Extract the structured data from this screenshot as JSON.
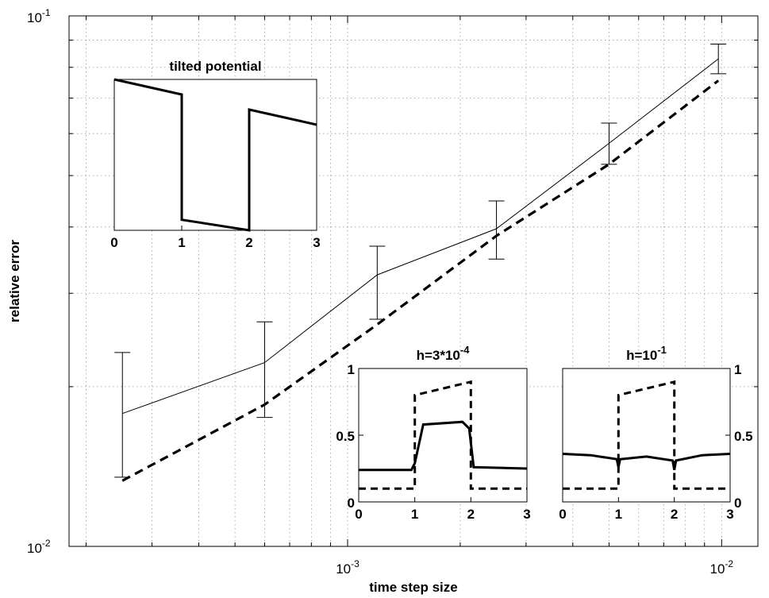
{
  "chart_data": [
    {
      "id": "main",
      "type": "line",
      "xlabel": "time step size",
      "ylabel": "relative error",
      "xscale": "log",
      "yscale": "log",
      "xlim": [
        0.00018,
        0.0125
      ],
      "ylim": [
        0.01,
        0.1
      ],
      "x_tick_labels": [
        {
          "value": 0.001,
          "base": "10",
          "exp": "-3"
        },
        {
          "value": 0.01,
          "base": "10",
          "exp": "-2"
        }
      ],
      "y_tick_labels": [
        {
          "value": 0.01,
          "base": "10",
          "exp": "-2"
        },
        {
          "value": 0.1,
          "base": "10",
          "exp": "-1"
        }
      ],
      "grid": true,
      "series": [
        {
          "style": "solid-thin",
          "x": [
            0.00025,
            0.0006,
            0.0012,
            0.0025,
            0.005,
            0.0098
          ],
          "y": [
            0.0178,
            0.0222,
            0.0325,
            0.0397,
            0.0575,
            0.083
          ],
          "err_low": [
            0.0135,
            0.0175,
            0.0268,
            0.0348,
            0.0525,
            0.0778
          ],
          "err_high": [
            0.0232,
            0.0265,
            0.0368,
            0.0448,
            0.0628,
            0.0885
          ]
        },
        {
          "style": "dashed-thick",
          "x": [
            0.00025,
            0.0006,
            0.0012,
            0.0025,
            0.005,
            0.0098
          ],
          "y": [
            0.0133,
            0.0185,
            0.0262,
            0.0385,
            0.0525,
            0.0755
          ]
        }
      ]
    },
    {
      "id": "inset-potential",
      "type": "line",
      "title": "tilted potential",
      "xlim": [
        0,
        3
      ],
      "ylim": [
        0,
        1
      ],
      "x_ticks": [
        "0",
        "1",
        "2",
        "3"
      ],
      "series": [
        {
          "style": "solid-thick",
          "x": [
            0,
            1,
            1,
            2,
            2,
            3
          ],
          "y": [
            1.0,
            0.9,
            0.07,
            0.0,
            0.8,
            0.7
          ]
        }
      ]
    },
    {
      "id": "inset-h1",
      "type": "line",
      "title_base": "h=3*10",
      "title_exp": "-4",
      "xlim": [
        0,
        3
      ],
      "ylim": [
        0,
        1
      ],
      "x_ticks": [
        "0",
        "1",
        "2",
        "3"
      ],
      "y_ticks": [
        "0",
        "0.5",
        "1"
      ],
      "y_ticks_side": "left",
      "series": [
        {
          "style": "dashed-thick",
          "x": [
            0,
            1,
            1,
            2,
            2,
            3
          ],
          "y": [
            0.1,
            0.1,
            0.8,
            0.9,
            0.1,
            0.1
          ]
        },
        {
          "style": "solid-thick",
          "x": [
            0,
            0.94,
            1.0,
            1.15,
            1.85,
            1.97,
            2.05,
            3
          ],
          "y": [
            0.24,
            0.24,
            0.29,
            0.58,
            0.6,
            0.55,
            0.26,
            0.25
          ]
        }
      ]
    },
    {
      "id": "inset-h2",
      "type": "line",
      "title_base": "h=10",
      "title_exp": "-1",
      "xlim": [
        0,
        3
      ],
      "ylim": [
        0,
        1
      ],
      "x_ticks": [
        "0",
        "1",
        "2",
        "3"
      ],
      "y_ticks": [
        "0",
        "0.5",
        "1"
      ],
      "y_ticks_side": "right",
      "series": [
        {
          "style": "dashed-thick",
          "x": [
            0,
            1,
            1,
            2,
            2,
            3
          ],
          "y": [
            0.1,
            0.1,
            0.8,
            0.9,
            0.1,
            0.1
          ]
        },
        {
          "style": "solid-thick",
          "x": [
            0,
            0.5,
            0.97,
            1.0,
            1.03,
            1.5,
            1.97,
            2.0,
            2.03,
            2.5,
            3
          ],
          "y": [
            0.36,
            0.35,
            0.32,
            0.26,
            0.32,
            0.34,
            0.31,
            0.24,
            0.31,
            0.35,
            0.36
          ]
        }
      ]
    }
  ]
}
